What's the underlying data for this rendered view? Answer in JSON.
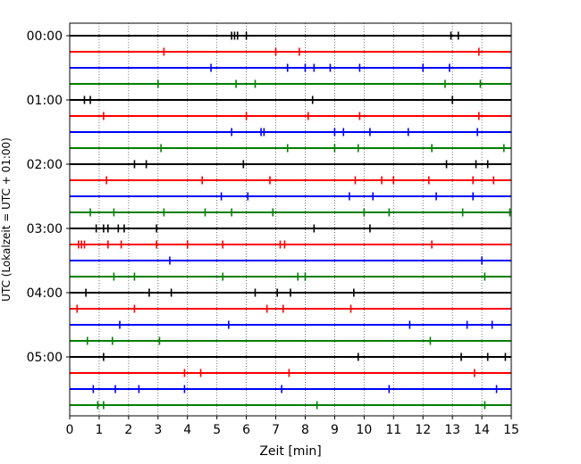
{
  "chart_data": {
    "type": "line",
    "title": "",
    "xlabel": "Zeit  [min]",
    "ylabel": "UTC (Lokalzeit = UTC + 01:00)",
    "xlim": [
      0,
      15
    ],
    "x_ticks": [
      0,
      1,
      2,
      3,
      4,
      5,
      6,
      7,
      8,
      9,
      10,
      11,
      12,
      13,
      14,
      15
    ],
    "x_tick_labels": [
      "0",
      "1",
      "2",
      "3",
      "4",
      "5",
      "6",
      "7",
      "8",
      "9",
      "10",
      "11",
      "12",
      "13",
      "14",
      "15"
    ],
    "y_tick_labels": [
      "00:00",
      "01:00",
      "02:00",
      "03:00",
      "04:00",
      "05:00"
    ],
    "grid": "vertical dotted at each minute",
    "row_minutes": 15,
    "trace_colors": [
      "#000000",
      "#ff0000",
      "#0000ff",
      "#008000"
    ],
    "series": [
      {
        "start": "00:00",
        "spikes": [
          5.5,
          5.6,
          5.7,
          6.0,
          12.95,
          13.2
        ]
      },
      {
        "start": "00:15",
        "spikes": [
          3.2,
          7.0,
          7.8,
          13.9
        ]
      },
      {
        "start": "00:30",
        "spikes": [
          4.8,
          7.4,
          8.0,
          8.3,
          8.85,
          9.85,
          12.0,
          12.9
        ]
      },
      {
        "start": "00:45",
        "spikes": [
          3.0,
          5.65,
          6.3,
          12.75,
          13.95
        ]
      },
      {
        "start": "01:00",
        "spikes": [
          0.5,
          0.7,
          8.25,
          13.0
        ]
      },
      {
        "start": "01:15",
        "spikes": [
          1.15,
          6.0,
          8.1,
          9.85,
          13.9
        ]
      },
      {
        "start": "01:30",
        "spikes": [
          5.5,
          6.5,
          6.6,
          9.0,
          9.3,
          10.2,
          11.5,
          13.85
        ]
      },
      {
        "start": "01:45",
        "spikes": [
          3.1,
          7.4,
          9.0,
          9.8,
          12.3,
          14.75
        ]
      },
      {
        "start": "02:00",
        "spikes": [
          2.2,
          2.6,
          5.9,
          12.8,
          13.8,
          14.2
        ]
      },
      {
        "start": "02:15",
        "spikes": [
          1.25,
          4.5,
          6.8,
          9.7,
          10.6,
          11.0,
          12.2,
          13.7,
          14.4
        ]
      },
      {
        "start": "02:30",
        "spikes": [
          5.15,
          6.05,
          9.5,
          10.3,
          12.45,
          13.7
        ]
      },
      {
        "start": "02:45",
        "spikes": [
          0.7,
          1.5,
          3.2,
          4.6,
          5.5,
          6.9,
          10.0,
          10.85,
          13.35,
          14.95
        ]
      },
      {
        "start": "03:00",
        "spikes": [
          0.9,
          1.15,
          1.3,
          1.65,
          1.85,
          2.95,
          8.3,
          10.2
        ]
      },
      {
        "start": "03:15",
        "spikes": [
          0.3,
          0.4,
          0.5,
          1.3,
          1.75,
          2.95,
          4.0,
          5.2,
          7.15,
          7.3,
          12.3
        ]
      },
      {
        "start": "03:30",
        "spikes": [
          3.4,
          14.0
        ]
      },
      {
        "start": "03:45",
        "spikes": [
          1.5,
          2.2,
          5.2,
          7.75,
          8.0,
          14.1
        ]
      },
      {
        "start": "04:00",
        "spikes": [
          0.55,
          2.7,
          3.45,
          6.3,
          7.05,
          7.5,
          9.65
        ]
      },
      {
        "start": "04:15",
        "spikes": [
          0.25,
          2.2,
          6.7,
          7.25,
          9.55
        ]
      },
      {
        "start": "04:30",
        "spikes": [
          1.7,
          5.4,
          11.55,
          13.5,
          14.35
        ]
      },
      {
        "start": "04:45",
        "spikes": [
          0.6,
          1.45,
          3.05,
          12.25
        ]
      },
      {
        "start": "05:00",
        "spikes": [
          1.15,
          9.8,
          13.3,
          14.2,
          14.8
        ]
      },
      {
        "start": "05:15",
        "spikes": [
          3.9,
          4.45,
          7.45,
          13.75
        ]
      },
      {
        "start": "05:30",
        "spikes": [
          0.8,
          1.55,
          2.35,
          3.9,
          7.2,
          10.85,
          14.5
        ]
      },
      {
        "start": "05:45",
        "spikes": [
          0.95,
          1.15,
          8.4,
          14.1
        ]
      }
    ]
  }
}
